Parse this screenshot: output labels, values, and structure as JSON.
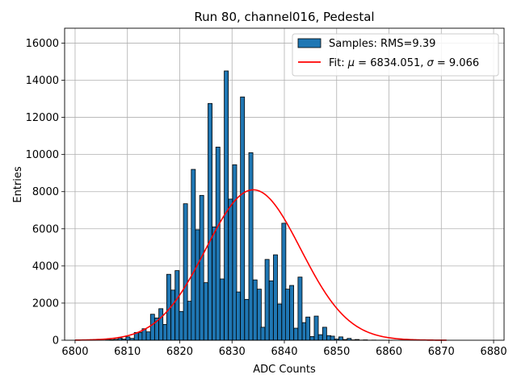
{
  "chart_data": {
    "type": "bar",
    "title": "Run 80, channel016, Pedestal",
    "xlabel": "ADC Counts",
    "ylabel": "Entries",
    "xlim": [
      6798,
      6882
    ],
    "ylim": [
      0,
      16800
    ],
    "xticks": [
      6800,
      6810,
      6820,
      6830,
      6840,
      6850,
      6860,
      6870,
      6880
    ],
    "yticks": [
      0,
      2000,
      4000,
      6000,
      8000,
      10000,
      12000,
      14000,
      16000
    ],
    "grid": true,
    "legend_position": "top-right",
    "histogram": {
      "name": "Samples: RMS=9.39",
      "bin_width": 0.78,
      "color": "#1f77b4",
      "edgecolor": "#000000",
      "x": [
        6806.2,
        6807.0,
        6807.8,
        6808.6,
        6809.3,
        6810.1,
        6810.9,
        6811.7,
        6812.5,
        6813.2,
        6814.0,
        6814.8,
        6815.6,
        6816.4,
        6817.2,
        6817.9,
        6818.7,
        6819.5,
        6820.3,
        6821.1,
        6821.9,
        6822.6,
        6823.4,
        6824.2,
        6825.0,
        6825.8,
        6826.6,
        6827.3,
        6828.1,
        6828.9,
        6829.7,
        6830.5,
        6831.2,
        6832.0,
        6832.8,
        6833.6,
        6834.4,
        6835.2,
        6835.9,
        6836.7,
        6837.5,
        6838.3,
        6839.1,
        6839.9,
        6840.6,
        6841.4,
        6842.2,
        6843.0,
        6843.8,
        6844.5,
        6845.3,
        6846.1,
        6846.9,
        6847.7,
        6848.5,
        6849.2,
        6850.0,
        6850.8,
        6851.6,
        6852.4,
        6853.2,
        6853.9,
        6854.7,
        6855.5,
        6856.3,
        6857.1,
        6857.8,
        6858.6,
        6859.4,
        6860.2,
        6861.0,
        6861.8,
        6862.5,
        6863.3,
        6864.1,
        6864.9
      ],
      "values": [
        20,
        30,
        50,
        120,
        60,
        180,
        100,
        420,
        420,
        620,
        450,
        1400,
        1200,
        1700,
        850,
        3550,
        2700,
        3750,
        1550,
        7350,
        2100,
        9200,
        5950,
        7800,
        3100,
        12750,
        6100,
        10400,
        3300,
        14500,
        7600,
        9450,
        2600,
        13100,
        2200,
        10100,
        3250,
        2750,
        700,
        4350,
        3200,
        4600,
        1950,
        6300,
        2750,
        2950,
        650,
        3400,
        950,
        1250,
        200,
        1300,
        300,
        700,
        250,
        220,
        60,
        180,
        40,
        100,
        20,
        40,
        10,
        20,
        5,
        10,
        5,
        5,
        2,
        2,
        0,
        0,
        0,
        0,
        0,
        0
      ]
    },
    "fit": {
      "name": "Fit: μ = 6834.051, σ = 9.066",
      "label_prefix": "Fit: ",
      "mu": 6834.051,
      "sigma": 9.066,
      "amplitude": 8100,
      "x_range": [
        6800,
        6871
      ],
      "color": "#ff0000"
    }
  }
}
